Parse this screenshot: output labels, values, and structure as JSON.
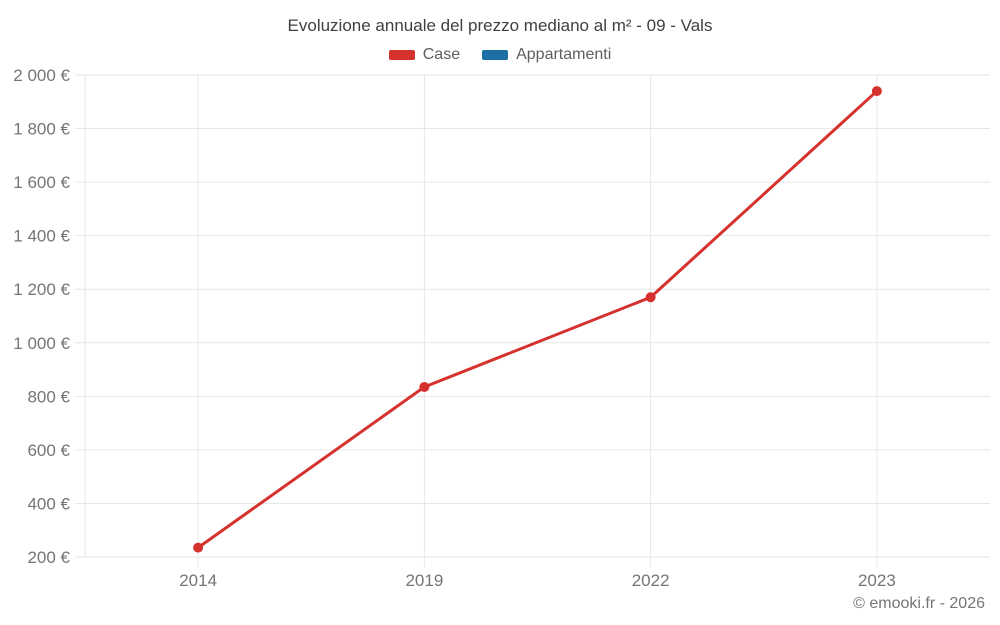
{
  "chart_data": {
    "type": "line",
    "title": "Evoluzione annuale del prezzo mediano al m² - 09 - Vals",
    "categories": [
      "2014",
      "2019",
      "2022",
      "2023"
    ],
    "series": [
      {
        "name": "Case",
        "color": "#d5312d",
        "values": [
          235,
          835,
          1170,
          1940
        ]
      },
      {
        "name": "Appartamenti",
        "color": "#1c6ea4",
        "values": []
      }
    ],
    "ylim": [
      200,
      2000
    ],
    "y_ticks": [
      200,
      400,
      600,
      800,
      1000,
      1200,
      1400,
      1600,
      1800,
      2000
    ],
    "y_tick_labels": [
      "200 €",
      "400 €",
      "600 €",
      "800 €",
      "1 000 €",
      "1 200 €",
      "1 400 €",
      "1 600 €",
      "1 800 €",
      "2 000 €"
    ],
    "grid": true,
    "grid_color": "#e6e6e6",
    "tick_label_color": "#757575",
    "legend_position": "top",
    "line_width": 3,
    "point_radius": 5
  },
  "footer": {
    "text": "© emooki.fr - 2026"
  }
}
